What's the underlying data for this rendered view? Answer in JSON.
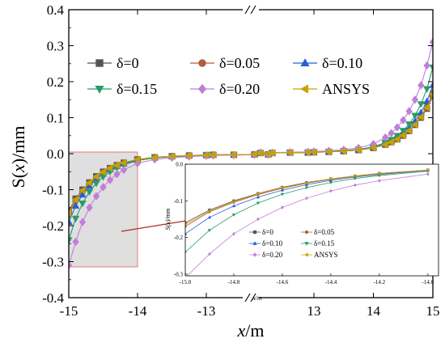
{
  "chart_data": {
    "type": "line",
    "title": "",
    "xlabel_italic": "x",
    "xlabel_unit": "/m",
    "ylabel_prefix": "S(",
    "ylabel_italic": "x",
    "ylabel_suffix": ")/mm",
    "ylim": [
      -0.4,
      0.4
    ],
    "yticks": [
      "-0.4",
      "-0.3",
      "-0.2",
      "-0.1",
      "0.0",
      "0.1",
      "0.2",
      "0.3",
      "0.4"
    ],
    "xticks": [
      "-15",
      "-14",
      "-13",
      "13",
      "14",
      "15"
    ],
    "x_axis_break": [
      -13,
      13
    ],
    "x": [
      -15.0,
      -14.9,
      -14.8,
      -14.7,
      -14.6,
      -14.5,
      -14.4,
      -14.3,
      -14.2,
      -14.0,
      -13.75,
      -13.5,
      -13.25,
      -13.0,
      -12.9,
      -12.6,
      -12.3,
      -12.1,
      12.1,
      12.3,
      12.6,
      12.9,
      13.0,
      13.25,
      13.5,
      13.75,
      14.0,
      14.2,
      14.3,
      14.4,
      14.5,
      14.6,
      14.7,
      14.8,
      14.9,
      15.0
    ],
    "series": [
      {
        "name": "δ=0",
        "color": "#555555",
        "marker": "square",
        "values": [
          -0.16,
          -0.125,
          -0.1,
          -0.08,
          -0.063,
          -0.05,
          -0.04,
          -0.032,
          -0.025,
          -0.016,
          -0.01,
          -0.007,
          -0.005,
          -0.004,
          -0.003,
          -0.003,
          -0.002,
          -0.002,
          0.002,
          0.002,
          0.003,
          0.003,
          0.004,
          0.005,
          0.007,
          0.01,
          0.016,
          0.025,
          0.032,
          0.04,
          0.05,
          0.063,
          0.08,
          0.1,
          0.125,
          0.16
        ]
      },
      {
        "name": "δ=0.05",
        "color": "#b55a3c",
        "marker": "circle",
        "values": [
          -0.17,
          -0.13,
          -0.104,
          -0.083,
          -0.066,
          -0.052,
          -0.041,
          -0.033,
          -0.026,
          -0.016,
          -0.01,
          -0.007,
          -0.005,
          -0.004,
          -0.003,
          -0.003,
          -0.002,
          -0.002,
          0.002,
          0.002,
          0.003,
          0.003,
          0.004,
          0.005,
          0.007,
          0.01,
          0.016,
          0.026,
          0.033,
          0.041,
          0.052,
          0.066,
          0.083,
          0.104,
          0.13,
          0.17
        ]
      },
      {
        "name": "δ=0.10",
        "color": "#2a5fd0",
        "marker": "triangle-up",
        "values": [
          -0.19,
          -0.145,
          -0.114,
          -0.09,
          -0.071,
          -0.056,
          -0.044,
          -0.035,
          -0.028,
          -0.017,
          -0.011,
          -0.008,
          -0.005,
          -0.004,
          -0.003,
          -0.003,
          -0.002,
          -0.002,
          0.002,
          0.002,
          0.003,
          0.003,
          0.004,
          0.005,
          0.008,
          0.011,
          0.017,
          0.028,
          0.035,
          0.044,
          0.056,
          0.071,
          0.09,
          0.114,
          0.145,
          0.19
        ]
      },
      {
        "name": "δ=0.15",
        "color": "#2a9a6a",
        "marker": "triangle-down",
        "values": [
          -0.24,
          -0.18,
          -0.138,
          -0.106,
          -0.082,
          -0.064,
          -0.05,
          -0.039,
          -0.031,
          -0.019,
          -0.012,
          -0.008,
          -0.006,
          -0.004,
          -0.004,
          -0.003,
          -0.003,
          -0.002,
          0.002,
          0.003,
          0.003,
          0.004,
          0.004,
          0.006,
          0.008,
          0.012,
          0.019,
          0.031,
          0.039,
          0.05,
          0.064,
          0.082,
          0.106,
          0.138,
          0.18,
          0.24
        ]
      },
      {
        "name": "δ=0.20",
        "color": "#c07ed8",
        "marker": "diamond",
        "values": [
          -0.31,
          -0.245,
          -0.19,
          -0.15,
          -0.118,
          -0.093,
          -0.073,
          -0.057,
          -0.045,
          -0.027,
          -0.016,
          -0.011,
          -0.008,
          -0.006,
          -0.005,
          -0.004,
          -0.003,
          -0.003,
          0.003,
          0.003,
          0.004,
          0.005,
          0.006,
          0.008,
          0.011,
          0.016,
          0.027,
          0.045,
          0.057,
          0.073,
          0.093,
          0.118,
          0.15,
          0.19,
          0.245,
          0.31
        ]
      },
      {
        "name": "ANSYS",
        "color": "#c9a100",
        "marker": "triangle-left",
        "values": [
          -0.165,
          -0.128,
          -0.102,
          -0.081,
          -0.064,
          -0.051,
          -0.04,
          -0.032,
          -0.025,
          -0.016,
          -0.01,
          -0.007,
          -0.005,
          -0.004,
          -0.003,
          -0.003,
          -0.002,
          -0.002,
          0.002,
          0.002,
          0.003,
          0.003,
          0.004,
          0.005,
          0.007,
          0.01,
          0.016,
          0.025,
          0.032,
          0.04,
          0.051,
          0.064,
          0.081,
          0.102,
          0.128,
          0.165
        ]
      }
    ],
    "legend_placement": "top",
    "zoom_region": {
      "x": [
        -15.0,
        -14.0
      ],
      "y": [
        -0.31,
        0.0
      ]
    },
    "inset": {
      "xlim": [
        -15.0,
        -14.0
      ],
      "ylim": [
        -0.3,
        0.0
      ],
      "xticks": [
        "-15.0",
        "-14.8",
        "-14.6",
        "-14.4",
        "-14.2",
        "-14.0"
      ],
      "yticks": [
        "-0.3",
        "-0.2",
        "-0.1",
        "0.0"
      ],
      "xlabel": "x/m",
      "ylabel": "S(x)/mm",
      "legend_placement": "bottom-right"
    },
    "grid": false
  }
}
